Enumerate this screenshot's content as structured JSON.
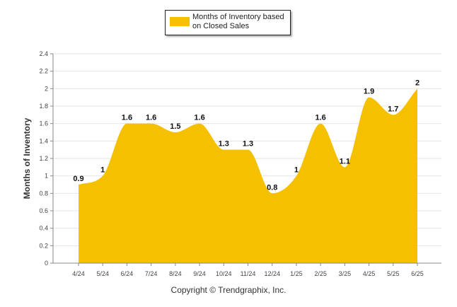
{
  "chart_data": {
    "type": "area",
    "categories": [
      "4/24",
      "5/24",
      "6/24",
      "7/24",
      "8/24",
      "9/24",
      "10/24",
      "11/24",
      "12/24",
      "1/25",
      "2/25",
      "3/25",
      "4/25",
      "5/25",
      "6/25"
    ],
    "series": [
      {
        "name": "Months of Inventory based on Closed Sales",
        "values": [
          0.9,
          1,
          1.6,
          1.6,
          1.5,
          1.6,
          1.3,
          1.3,
          0.8,
          1,
          1.6,
          1.1,
          1.9,
          1.7,
          2
        ],
        "color": "#F5C000"
      }
    ],
    "data_labels": [
      "0.9",
      "1",
      "1.6",
      "1.6",
      "1.5",
      "1.6",
      "1.3",
      "1.3",
      "0.8",
      "1",
      "1.6",
      "1.1",
      "1.9",
      "1.7",
      "2"
    ],
    "ylabel": "Months of Inventory",
    "xlabel": "",
    "ylim": [
      0,
      2.4
    ],
    "yticks": [
      "0",
      "0.2",
      "0.4",
      "0.6",
      "0.8",
      "1",
      "1.2",
      "1.4",
      "1.6",
      "1.8",
      "2",
      "2.2",
      "2.4"
    ],
    "grid": true,
    "legend_position": "top-center"
  },
  "legend": {
    "label": "Months of Inventory based on Closed Sales",
    "color": "#F5C000"
  },
  "footer": {
    "copyright": "Copyright © Trendgraphix, Inc."
  }
}
